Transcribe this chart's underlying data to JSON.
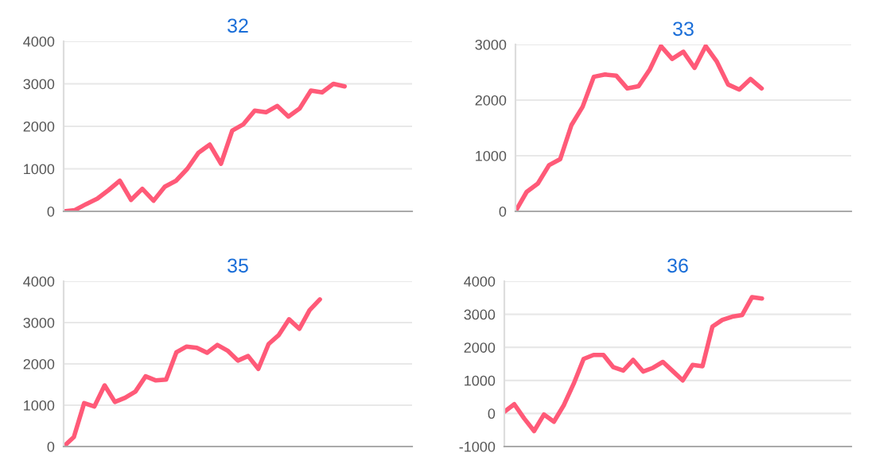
{
  "chart_data": [
    {
      "type": "line",
      "title": "32",
      "categories": [
        null,
        null,
        null,
        null,
        null,
        null,
        null,
        null,
        null,
        null,
        null,
        null,
        null,
        null,
        null,
        null,
        null,
        null,
        null,
        null,
        null,
        null,
        null,
        null,
        null,
        null,
        null,
        null,
        null,
        null,
        null,
        null
      ],
      "ylim": [
        0,
        4000
      ],
      "yticks": [
        0,
        1000,
        2000,
        3000,
        4000
      ],
      "grid": "y",
      "tick_labels": "y",
      "marker": "none",
      "series": [
        {
          "color": "#ff5a78",
          "values": [
            0,
            30,
            170,
            300,
            500,
            720,
            270,
            530,
            250,
            580,
            720,
            1000,
            1380,
            1570,
            1120,
            1900,
            2050,
            2370,
            2330,
            2480,
            2230,
            2420,
            2840,
            2800,
            3000,
            2940,
            null,
            null,
            null,
            null,
            null,
            null
          ]
        }
      ]
    },
    {
      "type": "line",
      "title": "33",
      "categories": [
        null,
        null,
        null,
        null,
        null,
        null,
        null,
        null,
        null,
        null,
        null,
        null,
        null,
        null,
        null,
        null,
        null,
        null,
        null,
        null,
        null,
        null,
        null,
        null,
        null,
        null,
        null,
        null,
        null,
        null,
        null
      ],
      "ylim": [
        0,
        3000
      ],
      "yticks": [
        0,
        1000,
        2000,
        3000
      ],
      "grid": "y",
      "tick_labels": "y",
      "marker": "none",
      "series": [
        {
          "color": "#ff5a78",
          "values": [
            0,
            350,
            500,
            830,
            940,
            1550,
            1880,
            2420,
            2460,
            2440,
            2210,
            2250,
            2550,
            2970,
            2740,
            2870,
            2580,
            2970,
            2690,
            2280,
            2190,
            2380,
            2210,
            null,
            null,
            null,
            null,
            null,
            null,
            null,
            null
          ]
        }
      ]
    },
    {
      "type": "line",
      "title": "35",
      "categories": [
        null,
        null,
        null,
        null,
        null,
        null,
        null,
        null,
        null,
        null,
        null,
        null,
        null,
        null,
        null,
        null,
        null,
        null,
        null,
        null,
        null,
        null,
        null,
        null,
        null,
        null,
        null,
        null,
        null,
        null,
        null,
        null,
        null,
        null,
        null
      ],
      "ylim": [
        0,
        4000
      ],
      "yticks": [
        0,
        1000,
        2000,
        3000,
        4000
      ],
      "grid": "y",
      "tick_labels": "y",
      "marker": "none",
      "series": [
        {
          "color": "#ff5a78",
          "values": [
            0,
            230,
            1050,
            970,
            1480,
            1080,
            1180,
            1330,
            1700,
            1600,
            1620,
            2280,
            2420,
            2390,
            2270,
            2460,
            2320,
            2080,
            2190,
            1880,
            2480,
            2700,
            3080,
            2850,
            3300,
            3560,
            null,
            null,
            null,
            null,
            null,
            null,
            null,
            null,
            null
          ]
        }
      ]
    },
    {
      "type": "line",
      "title": "36",
      "categories": [
        null,
        null,
        null,
        null,
        null,
        null,
        null,
        null,
        null,
        null,
        null,
        null,
        null,
        null,
        null,
        null,
        null,
        null,
        null,
        null,
        null,
        null,
        null,
        null,
        null,
        null,
        null,
        null,
        null,
        null,
        null,
        null,
        null,
        null,
        null,
        null
      ],
      "ylim": [
        -1000,
        4000
      ],
      "yticks": [
        -1000,
        0,
        1000,
        2000,
        3000,
        4000
      ],
      "grid": "y",
      "tick_labels": "y",
      "marker": "none",
      "series": [
        {
          "color": "#ff5a78",
          "values": [
            50,
            280,
            -150,
            -530,
            -30,
            -250,
            250,
            900,
            1650,
            1770,
            1770,
            1400,
            1300,
            1620,
            1270,
            1380,
            1560,
            1280,
            1000,
            1470,
            1430,
            2630,
            2830,
            2930,
            2980,
            3520,
            3480,
            null,
            null,
            null,
            null,
            null,
            null,
            null,
            null,
            null
          ]
        }
      ]
    }
  ]
}
